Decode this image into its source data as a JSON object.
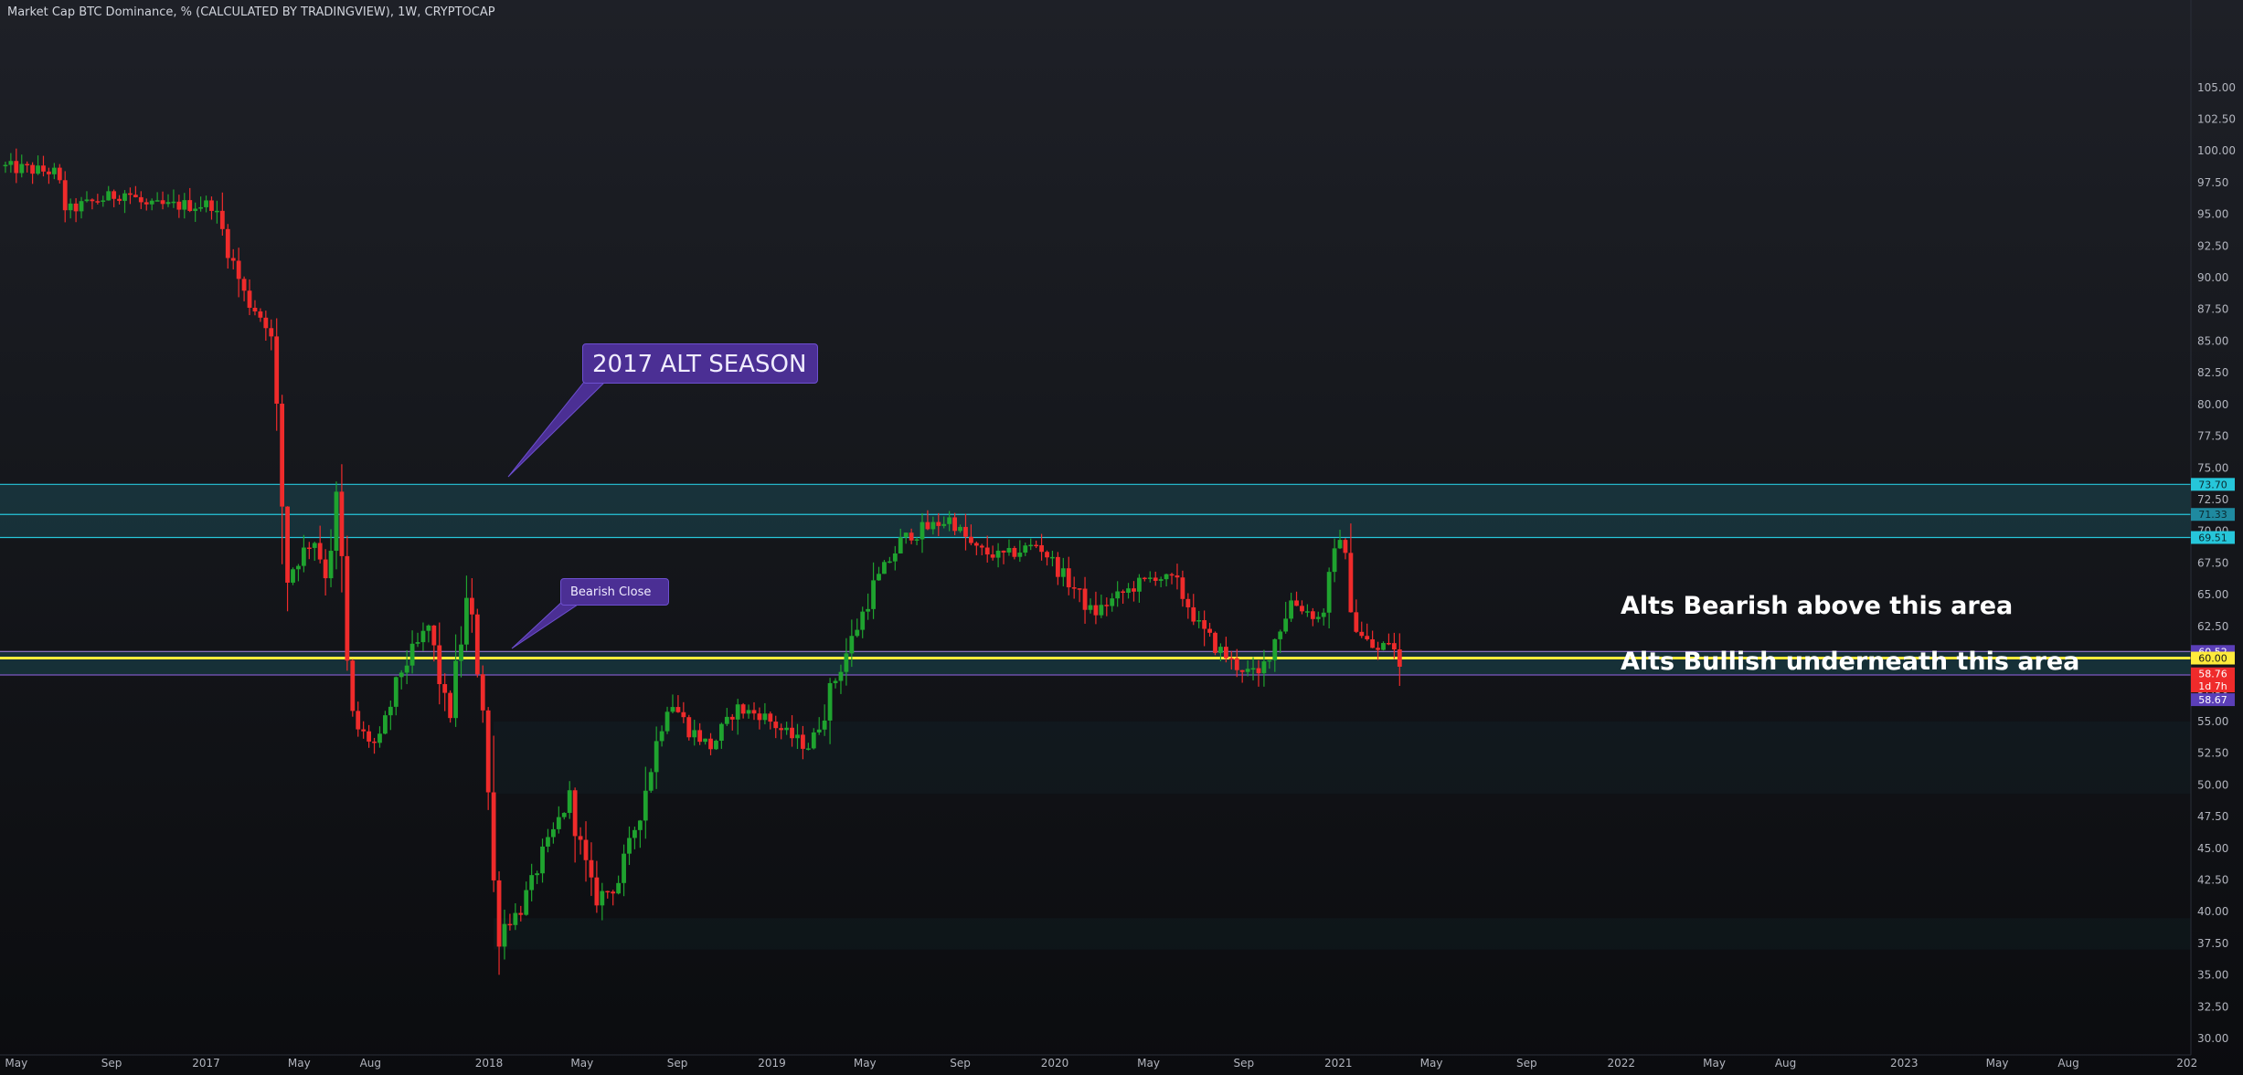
{
  "title": "Market Cap BTC Dominance, % (CALCULATED BY TRADINGVIEW), 1W, CRYPTOCAP",
  "colors": {
    "up": "#26a69a",
    "up_body": "#1fa32f",
    "down": "#ef2b2b",
    "zone": "#1f6e7a",
    "zone_line": "#26c6da",
    "yellow": "#ffeb3b",
    "purple": "#5b3fb8",
    "label_fill": "#4b2f94"
  },
  "annotations": {
    "alt_season": "2017 ALT SEASON",
    "bearish_close": "Bearish Close",
    "alts_bearish": "Alts Bearish above this area",
    "alts_bullish": "Alts Bullish underneath this area"
  },
  "price_tags": [
    {
      "value": 73.7,
      "text": "73.70",
      "bg": "#26c6da",
      "fg": "#0b2a30"
    },
    {
      "value": 71.33,
      "text": "71.33",
      "bg": "#1f8aa0",
      "fg": "#0b2a30"
    },
    {
      "value": 69.51,
      "text": "69.51",
      "bg": "#26c6da",
      "fg": "#0b2a30"
    },
    {
      "value": 60.52,
      "text": "60.52",
      "bg": "#5b3fb8",
      "fg": "#ffffff"
    },
    {
      "value": 60.0,
      "text": "60.00",
      "bg": "#ffeb3b",
      "fg": "#1a1a1a"
    },
    {
      "value": 58.76,
      "text": "58.76",
      "bg": "#ef2b2b",
      "fg": "#ffffff"
    },
    {
      "value": 57.8,
      "text": "1d 7h",
      "bg": "#ef2b2b",
      "fg": "#ffffff"
    },
    {
      "value": 58.67,
      "text": "58.67",
      "bg": "#5b3fb8",
      "fg": "#ffffff",
      "offset_rows": 2
    }
  ],
  "chart_data": {
    "type": "candlestick",
    "title": "Market Cap BTC Dominance, % (CALCULATED BY TRADINGVIEW), 1W, CRYPTOCAP",
    "ylim": [
      30,
      105
    ],
    "xlim": [
      "2016-04-10",
      "2024-01-06"
    ],
    "y_ticks": [
      "30.00",
      "32.50",
      "35.00",
      "37.50",
      "40.00",
      "42.50",
      "45.00",
      "47.50",
      "50.00",
      "52.50",
      "55.00",
      "57.50",
      "60.00",
      "62.50",
      "65.00",
      "67.50",
      "70.00",
      "72.50",
      "75.00",
      "77.50",
      "80.00",
      "82.50",
      "85.00",
      "87.50",
      "90.00",
      "92.50",
      "95.00",
      "97.50",
      "100.00",
      "102.50",
      "105.00"
    ],
    "x_ticks": [
      {
        "date": "2016-05-01",
        "label": "May"
      },
      {
        "date": "2016-09-01",
        "label": "Sep"
      },
      {
        "date": "2017-01-01",
        "label": "2017"
      },
      {
        "date": "2017-05-01",
        "label": "May"
      },
      {
        "date": "2017-08-01",
        "label": "Aug"
      },
      {
        "date": "2018-01-01",
        "label": "2018"
      },
      {
        "date": "2018-05-01",
        "label": "May"
      },
      {
        "date": "2018-09-01",
        "label": "Sep"
      },
      {
        "date": "2019-01-01",
        "label": "2019"
      },
      {
        "date": "2019-05-01",
        "label": "May"
      },
      {
        "date": "2019-09-01",
        "label": "Sep"
      },
      {
        "date": "2020-01-01",
        "label": "2020"
      },
      {
        "date": "2020-05-01",
        "label": "May"
      },
      {
        "date": "2020-09-01",
        "label": "Sep"
      },
      {
        "date": "2021-01-01",
        "label": "2021"
      },
      {
        "date": "2021-05-01",
        "label": "May"
      },
      {
        "date": "2021-09-01",
        "label": "Sep"
      },
      {
        "date": "2022-01-01",
        "label": "2022"
      },
      {
        "date": "2022-05-01",
        "label": "May"
      },
      {
        "date": "2022-08-01",
        "label": "Aug"
      },
      {
        "date": "2023-01-01",
        "label": "2023"
      },
      {
        "date": "2023-05-01",
        "label": "May"
      },
      {
        "date": "2023-08-01",
        "label": "Aug"
      },
      {
        "date": "2024-01-01",
        "label": "202"
      }
    ],
    "zones": [
      {
        "from": 69.51,
        "to": 73.7
      },
      {
        "from": 58.67,
        "to": 60.52
      }
    ],
    "hlines": [
      {
        "value": 73.7,
        "color": "#26c6da"
      },
      {
        "value": 71.33,
        "color": "#26c6da"
      },
      {
        "value": 69.51,
        "color": "#26c6da"
      },
      {
        "value": 60.52,
        "color": "#9575cd"
      },
      {
        "value": 60.0,
        "color": "#ffeb3b"
      },
      {
        "value": 58.67,
        "color": "#7e57c2"
      }
    ],
    "start": "2016-04-10",
    "interval_days": 7,
    "series": [
      {
        "name": "Market Cap BTC Dominance",
        "anchors": [
          [
            "2016-04-10",
            98.8
          ],
          [
            "2016-06-20",
            98.3
          ],
          [
            "2016-07-05",
            95.3
          ],
          [
            "2016-09-20",
            96.8
          ],
          [
            "2016-10-15",
            95.6
          ],
          [
            "2017-01-10",
            95.8
          ],
          [
            "2017-02-20",
            88.5
          ],
          [
            "2017-03-25",
            86.0
          ],
          [
            "2017-04-15",
            66.5
          ],
          [
            "2017-05-20",
            69.5
          ],
          [
            "2017-06-05",
            66.5
          ],
          [
            "2017-06-20",
            73.0
          ],
          [
            "2017-07-05",
            55.0
          ],
          [
            "2017-08-10",
            53.0
          ],
          [
            "2017-09-10",
            59.0
          ],
          [
            "2017-10-15",
            62.5
          ],
          [
            "2017-11-10",
            55.0
          ],
          [
            "2017-12-05",
            65.0
          ],
          [
            "2017-12-25",
            56.0
          ],
          [
            "2018-01-10",
            38.5
          ],
          [
            "2018-02-10",
            40.0
          ],
          [
            "2018-03-15",
            45.0
          ],
          [
            "2018-04-15",
            49.0
          ],
          [
            "2018-05-15",
            41.0
          ],
          [
            "2018-06-15",
            42.0
          ],
          [
            "2018-07-15",
            48.0
          ],
          [
            "2018-08-20",
            57.0
          ],
          [
            "2018-09-15",
            54.5
          ],
          [
            "2018-10-15",
            53.0
          ],
          [
            "2018-11-15",
            56.0
          ],
          [
            "2018-12-20",
            55.5
          ],
          [
            "2019-01-20",
            54.0
          ],
          [
            "2019-02-20",
            53.0
          ],
          [
            "2019-03-25",
            58.5
          ],
          [
            "2019-05-15",
            66.0
          ],
          [
            "2019-06-20",
            69.5
          ],
          [
            "2019-08-20",
            71.0
          ],
          [
            "2019-09-20",
            68.5
          ],
          [
            "2019-10-25",
            68.0
          ],
          [
            "2019-12-10",
            69.0
          ],
          [
            "2020-01-20",
            66.0
          ],
          [
            "2020-02-20",
            63.5
          ],
          [
            "2020-03-25",
            65.0
          ],
          [
            "2020-05-10",
            66.5
          ],
          [
            "2020-06-05",
            66.0
          ],
          [
            "2020-07-10",
            62.0
          ],
          [
            "2020-08-20",
            59.5
          ],
          [
            "2020-09-20",
            58.5
          ],
          [
            "2020-11-01",
            64.5
          ],
          [
            "2020-12-10",
            63.0
          ],
          [
            "2021-01-03",
            70.0
          ],
          [
            "2021-01-25",
            62.0
          ],
          [
            "2021-02-20",
            60.5
          ],
          [
            "2021-03-10",
            61.5
          ],
          [
            "2021-03-22",
            58.8
          ]
        ]
      }
    ]
  }
}
